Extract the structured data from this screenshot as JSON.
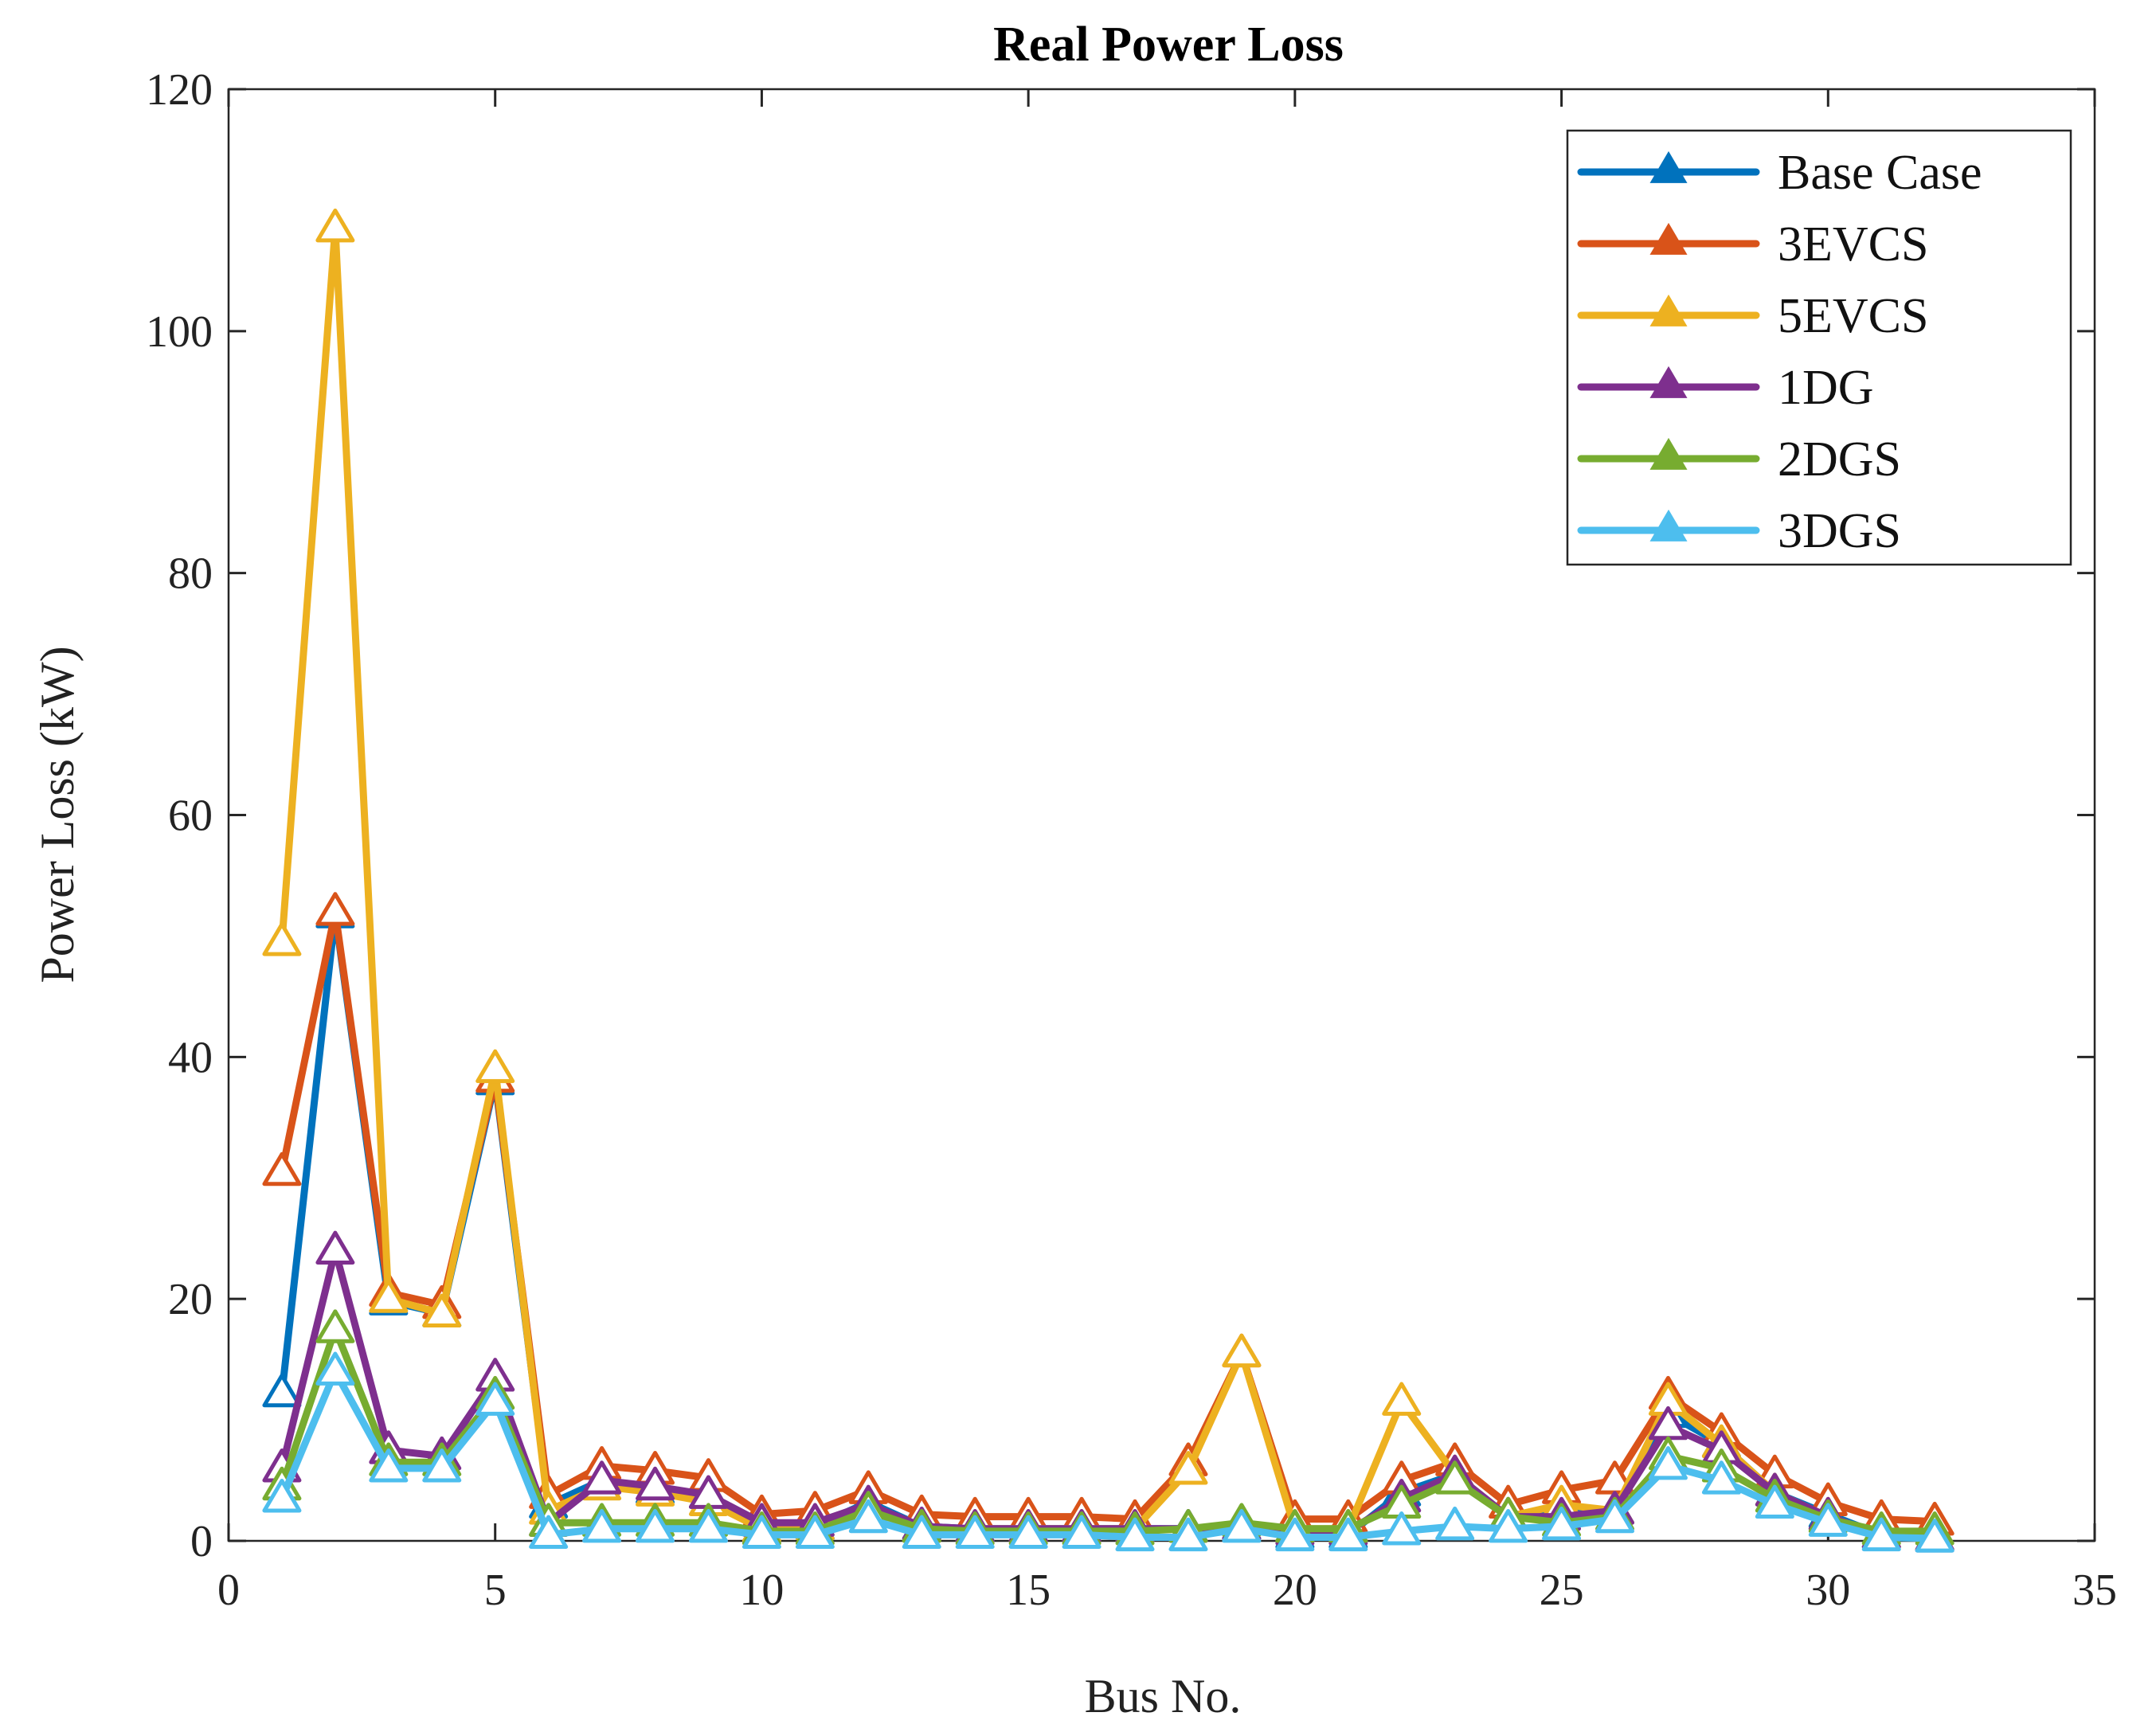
{
  "chart_data": {
    "type": "line",
    "title": "Real Power Loss",
    "xlabel": "Bus No.",
    "ylabel": "Power Loss (kW)",
    "xlim": [
      0,
      35
    ],
    "ylim": [
      0,
      120
    ],
    "xticks": [
      0,
      5,
      10,
      15,
      20,
      25,
      30,
      35
    ],
    "yticks": [
      0,
      20,
      40,
      60,
      80,
      100,
      120
    ],
    "legend_position": "top-right",
    "x": [
      1,
      2,
      3,
      4,
      5,
      6,
      7,
      8,
      9,
      10,
      11,
      12,
      13,
      14,
      15,
      16,
      17,
      18,
      19,
      20,
      21,
      22,
      23,
      24,
      25,
      26,
      27,
      28,
      29,
      30,
      31,
      32
    ],
    "series": [
      {
        "name": "Base Case",
        "color": "#0072BD",
        "values": [
          12.2,
          51.8,
          19.8,
          18.8,
          38.0,
          3.0,
          5.0,
          4.2,
          3.8,
          1.0,
          1.2,
          3.2,
          1.2,
          1.0,
          1.0,
          1.0,
          1.0,
          1.0,
          1.2,
          0.5,
          0.5,
          4.0,
          5.5,
          2.0,
          2.2,
          2.5,
          10.5,
          8.0,
          4.0,
          2.2,
          0.5,
          0.2
        ]
      },
      {
        "name": "3EVCS",
        "color": "#D95319",
        "values": [
          30.5,
          52.0,
          20.5,
          19.5,
          38.2,
          3.8,
          6.2,
          5.8,
          5.2,
          2.2,
          2.5,
          4.2,
          2.2,
          2.0,
          2.0,
          2.0,
          1.8,
          6.5,
          15.5,
          1.8,
          1.8,
          5.0,
          6.5,
          3.0,
          4.2,
          5.0,
          12.0,
          9.0,
          5.5,
          3.2,
          1.8,
          1.6
        ]
      },
      {
        "name": "5EVCS",
        "color": "#EDB120",
        "values": [
          49.5,
          108.5,
          20.0,
          18.8,
          39.0,
          2.5,
          4.5,
          4.0,
          3.2,
          1.0,
          1.2,
          2.5,
          1.0,
          1.0,
          1.0,
          1.0,
          1.0,
          5.8,
          15.5,
          1.0,
          1.0,
          11.5,
          5.5,
          2.0,
          3.0,
          2.5,
          11.5,
          8.0,
          4.0,
          2.0,
          0.5,
          0.3
        ]
      },
      {
        "name": "1DG",
        "color": "#7E2F8E",
        "values": [
          6.0,
          24.0,
          7.5,
          7.0,
          13.5,
          1.5,
          5.0,
          4.5,
          3.8,
          1.5,
          1.5,
          3.0,
          1.2,
          1.0,
          1.0,
          1.0,
          1.0,
          1.0,
          1.2,
          0.8,
          0.8,
          3.5,
          5.5,
          2.0,
          2.0,
          2.5,
          9.5,
          7.5,
          4.0,
          2.0,
          0.5,
          0.3
        ]
      },
      {
        "name": "2DGS",
        "color": "#77AC30",
        "values": [
          4.5,
          17.5,
          6.5,
          6.5,
          12.0,
          1.5,
          1.5,
          1.5,
          1.5,
          0.8,
          0.8,
          2.5,
          1.0,
          0.8,
          0.8,
          0.8,
          0.8,
          1.0,
          1.5,
          1.0,
          1.0,
          3.0,
          5.0,
          2.0,
          1.5,
          2.0,
          7.0,
          6.0,
          3.5,
          1.8,
          0.8,
          0.8
        ]
      },
      {
        "name": "3DGS",
        "color": "#4DBEEE",
        "values": [
          3.5,
          14.0,
          6.0,
          6.0,
          11.5,
          0.5,
          1.0,
          1.0,
          1.0,
          0.5,
          0.5,
          1.8,
          0.5,
          0.5,
          0.5,
          0.5,
          0.3,
          0.3,
          1.0,
          0.3,
          0.3,
          0.8,
          1.2,
          1.0,
          1.2,
          1.8,
          6.2,
          5.0,
          3.0,
          1.5,
          0.3,
          0.2
        ]
      }
    ]
  }
}
